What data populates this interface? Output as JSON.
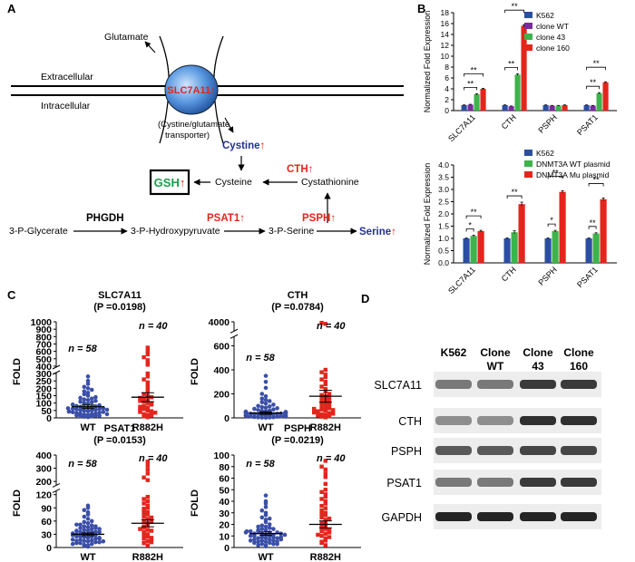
{
  "panel_labels": {
    "a": "A",
    "b": "B",
    "c": "C",
    "d": "D"
  },
  "pathway": {
    "glutamate": "Glutamate",
    "extracellular": "Extracellular",
    "intracellular": "Intracellular",
    "transporter": "SLC7A11",
    "transporter_caption_1": "(Cystine/glutamate",
    "transporter_caption_2": "transporter)",
    "cystine": "Cystine",
    "gsh": "GSH",
    "cth": "CTH",
    "cysteine": "Cysteine",
    "cystathionine": "Cystathionine",
    "phgdh": "PHGDH",
    "glycerate": "3-P-Glycerate",
    "hydroxypyruvate": "3-P-Hydroxypyruvate",
    "psat1": "PSAT1",
    "pserine": "3-P-Serine",
    "psph": "PSPH",
    "serine": "Serine",
    "up_arrow": "↑"
  },
  "western": {
    "lanes": [
      "K562",
      "Clone WT",
      "Clone 43",
      "Clone 160"
    ],
    "lane_lines": [
      [
        "K562"
      ],
      [
        "Clone",
        "WT"
      ],
      [
        "Clone",
        "43"
      ],
      [
        "Clone",
        "160"
      ]
    ],
    "proteins": [
      "SLC7A11",
      "CTH",
      "PSPH",
      "PSAT1",
      "GAPDH"
    ],
    "band_intensity": [
      [
        0.55,
        0.55,
        0.85,
        0.85
      ],
      [
        0.45,
        0.45,
        0.9,
        0.9
      ],
      [
        0.7,
        0.7,
        0.8,
        0.8
      ],
      [
        0.55,
        0.55,
        0.85,
        0.85
      ],
      [
        0.95,
        0.95,
        0.95,
        0.95
      ]
    ]
  },
  "colors": {
    "k562": "#2b4ea2",
    "clone_wt": "#7a2c9e",
    "clone43": "#3cb44b",
    "clone160": "#e3261c",
    "wt_dots": "#3b4fa8",
    "r882h_dots": "#e3261c",
    "red_text": "#e3261c",
    "blue_text": "#23309b",
    "gsh_green": "#14a14a"
  },
  "chart_data": [
    {
      "type": "bar",
      "panel": "B-top",
      "categories": [
        "SLC7A11",
        "CTH",
        "PSPH",
        "PSAT1"
      ],
      "ylabel": "Normalized Fold Expression",
      "ylim": [
        0,
        18
      ],
      "yticks": [
        0,
        2,
        4,
        6,
        8,
        10,
        12,
        14,
        16,
        18
      ],
      "legend": "top-right",
      "series": [
        {
          "name": "K562",
          "values": [
            1.0,
            1.0,
            1.0,
            1.0
          ],
          "err": [
            0.05,
            0.05,
            0.05,
            0.05
          ]
        },
        {
          "name": "clone WT",
          "values": [
            1.1,
            0.8,
            0.9,
            0.9
          ],
          "err": [
            0.06,
            0.05,
            0.05,
            0.05
          ]
        },
        {
          "name": "clone 43",
          "values": [
            3.0,
            6.6,
            0.9,
            3.2
          ],
          "err": [
            0.1,
            0.15,
            0.05,
            0.1
          ]
        },
        {
          "name": "clone 160",
          "values": [
            4.0,
            15.6,
            1.0,
            5.2
          ],
          "err": [
            0.1,
            0.2,
            0.05,
            0.1
          ]
        }
      ],
      "significance": [
        {
          "cat": 0,
          "from": 0,
          "to": 2,
          "label": "**"
        },
        {
          "cat": 0,
          "from": 0,
          "to": 3,
          "label": "**"
        },
        {
          "cat": 1,
          "from": 0,
          "to": 2,
          "label": "**"
        },
        {
          "cat": 1,
          "from": 0,
          "to": 3,
          "label": "**"
        },
        {
          "cat": 3,
          "from": 0,
          "to": 2,
          "label": "**"
        },
        {
          "cat": 3,
          "from": 0,
          "to": 3,
          "label": "**"
        }
      ]
    },
    {
      "type": "bar",
      "panel": "B-bottom",
      "categories": [
        "SLC7A11",
        "CTH",
        "PSPH",
        "PSAT1"
      ],
      "ylabel": "Normalized Fold Expression",
      "ylim": [
        0,
        4
      ],
      "yticks": [
        0,
        0.5,
        1,
        1.5,
        2,
        2.5,
        3,
        3.5,
        4
      ],
      "yticklabels": [
        "0.0",
        "0.5",
        "1.0",
        "1.5",
        "2.0",
        "2.5",
        "3.0",
        "3.5",
        "4.0"
      ],
      "legend": "top-right",
      "series": [
        {
          "name": "K562",
          "values": [
            1.0,
            1.0,
            1.0,
            1.0
          ],
          "err": [
            0.02,
            0.02,
            0.02,
            0.02
          ]
        },
        {
          "name": "DNMT3A WT plasmid",
          "values": [
            1.1,
            1.25,
            1.3,
            1.2
          ],
          "err": [
            0.03,
            0.06,
            0.03,
            0.03
          ]
        },
        {
          "name": "DNMT3A Mu plasmid",
          "values": [
            1.3,
            2.4,
            2.9,
            2.6
          ],
          "err": [
            0.03,
            0.08,
            0.05,
            0.05
          ]
        }
      ],
      "significance": [
        {
          "cat": 0,
          "from": 0,
          "to": 1,
          "label": "*"
        },
        {
          "cat": 0,
          "from": 0,
          "to": 2,
          "label": "**"
        },
        {
          "cat": 1,
          "from": 0,
          "to": 2,
          "label": "**"
        },
        {
          "cat": 2,
          "from": 0,
          "to": 1,
          "label": "*"
        },
        {
          "cat": 2,
          "from": 0,
          "to": 2,
          "label": "**"
        },
        {
          "cat": 3,
          "from": 0,
          "to": 1,
          "label": "**"
        },
        {
          "cat": 3,
          "from": 0,
          "to": 2,
          "label": "**"
        }
      ]
    },
    {
      "type": "scatter",
      "panel": "C-SLC7A11",
      "title": "SLC7A11",
      "subtitle": "(P =0.0198)",
      "ylabel": "FOLD",
      "categories": [
        "WT",
        "R882H"
      ],
      "n_labels": [
        "n = 58",
        "n = 40"
      ],
      "yticks": [
        0,
        50,
        100,
        150,
        200,
        250,
        300,
        400,
        500,
        600,
        700,
        800,
        900,
        1000
      ],
      "break": [
        300,
        400
      ],
      "means": [
        75,
        140
      ],
      "sem": [
        12,
        30
      ],
      "groups": [
        {
          "name": "WT",
          "values": [
            5,
            8,
            10,
            12,
            15,
            18,
            20,
            22,
            25,
            28,
            30,
            32,
            35,
            38,
            40,
            42,
            45,
            48,
            50,
            52,
            55,
            58,
            60,
            62,
            65,
            68,
            70,
            72,
            75,
            78,
            80,
            85,
            90,
            95,
            100,
            105,
            110,
            115,
            120,
            125,
            130,
            135,
            140,
            150,
            160,
            170,
            180,
            190,
            200,
            210,
            230,
            250,
            280,
            15,
            25,
            45,
            55,
            65
          ]
        },
        {
          "name": "R882H",
          "values": [
            5,
            10,
            15,
            20,
            25,
            30,
            40,
            50,
            60,
            70,
            80,
            90,
            100,
            110,
            120,
            130,
            140,
            150,
            160,
            180,
            200,
            220,
            240,
            260,
            280,
            300,
            420,
            450,
            480,
            520,
            560,
            600,
            650,
            35,
            45,
            55,
            75,
            95,
            115,
            135
          ]
        }
      ]
    },
    {
      "type": "scatter",
      "panel": "C-CTH",
      "title": "CTH",
      "subtitle": "(P =0.0784)",
      "ylabel": "FOLD",
      "categories": [
        "WT",
        "R882H"
      ],
      "n_labels": [
        "n = 58",
        "n = 40"
      ],
      "yticks": [
        0,
        200,
        400,
        600,
        4000
      ],
      "break": [
        600,
        3500
      ],
      "means": [
        40,
        180
      ],
      "sem": [
        10,
        50
      ],
      "groups": [
        {
          "name": "WT",
          "values": [
            2,
            3,
            4,
            5,
            6,
            8,
            10,
            12,
            14,
            15,
            16,
            18,
            20,
            22,
            24,
            25,
            26,
            28,
            30,
            32,
            34,
            35,
            36,
            38,
            40,
            42,
            44,
            45,
            46,
            48,
            50,
            52,
            55,
            58,
            60,
            65,
            70,
            75,
            80,
            85,
            90,
            95,
            100,
            110,
            120,
            130,
            140,
            150,
            160,
            180,
            200,
            250,
            300,
            350,
            10,
            20,
            30,
            40
          ]
        },
        {
          "name": "R882H",
          "values": [
            5,
            10,
            15,
            20,
            25,
            30,
            40,
            50,
            60,
            70,
            80,
            90,
            100,
            110,
            120,
            130,
            140,
            150,
            160,
            170,
            180,
            190,
            200,
            220,
            240,
            260,
            280,
            300,
            320,
            340,
            360,
            380,
            400,
            3700,
            3850,
            35,
            45,
            55,
            65,
            75
          ]
        }
      ]
    },
    {
      "type": "scatter",
      "panel": "C-PSAT1",
      "title": "PSAT1",
      "subtitle": "(P =0.0153)",
      "ylabel": "FOLD",
      "categories": [
        "WT",
        "R882H"
      ],
      "n_labels": [
        "n = 58",
        "n = 40"
      ],
      "yticks": [
        0,
        30,
        60,
        90,
        120,
        200,
        300,
        400
      ],
      "break": [
        120,
        200
      ],
      "means": [
        30,
        55
      ],
      "sem": [
        3,
        8
      ],
      "groups": [
        {
          "name": "WT",
          "values": [
            2,
            4,
            5,
            6,
            8,
            10,
            12,
            14,
            15,
            16,
            18,
            20,
            22,
            24,
            25,
            26,
            28,
            30,
            32,
            34,
            35,
            36,
            38,
            40,
            42,
            44,
            45,
            46,
            48,
            50,
            52,
            55,
            58,
            60,
            65,
            70,
            75,
            80,
            85,
            90,
            95,
            10,
            15,
            20,
            25,
            30,
            35,
            12,
            18,
            22,
            28,
            32,
            38,
            42,
            48,
            52,
            8,
            14
          ]
        },
        {
          "name": "R882H",
          "values": [
            5,
            10,
            15,
            20,
            25,
            30,
            35,
            40,
            45,
            50,
            55,
            60,
            65,
            70,
            75,
            80,
            85,
            90,
            95,
            100,
            105,
            110,
            115,
            210,
            230,
            260,
            290,
            320,
            350,
            12,
            18,
            28,
            38,
            48,
            58,
            68,
            78,
            88,
            22,
            42
          ]
        }
      ]
    },
    {
      "type": "scatter",
      "panel": "C-PSPH",
      "title": "PSPH",
      "subtitle": "(P =0.0219)",
      "ylabel": "FOLD",
      "categories": [
        "WT",
        "R882H"
      ],
      "n_labels": [
        "n = 58",
        "n = 40"
      ],
      "yticks": [
        0,
        10,
        20,
        30,
        40,
        50,
        60,
        80,
        100
      ],
      "break": [
        60,
        60
      ],
      "means": [
        12,
        20
      ],
      "sem": [
        1.5,
        3
      ],
      "groups": [
        {
          "name": "WT",
          "values": [
            1,
            2,
            3,
            4,
            5,
            6,
            7,
            8,
            9,
            10,
            11,
            12,
            13,
            14,
            15,
            16,
            17,
            18,
            19,
            20,
            22,
            24,
            26,
            28,
            30,
            32,
            35,
            38,
            40,
            45,
            2,
            3,
            4,
            5,
            6,
            7,
            8,
            9,
            10,
            11,
            12,
            13,
            14,
            15,
            16,
            5,
            8,
            10,
            12,
            14,
            6,
            9,
            11,
            13,
            3,
            7,
            18,
            25
          ]
        },
        {
          "name": "R882H",
          "values": [
            2,
            4,
            6,
            8,
            10,
            12,
            14,
            16,
            18,
            20,
            22,
            24,
            26,
            28,
            30,
            32,
            34,
            36,
            38,
            40,
            42,
            44,
            46,
            48,
            50,
            55,
            62,
            68,
            75,
            80,
            90,
            5,
            9,
            13,
            17,
            21,
            25,
            29,
            15,
            11
          ]
        }
      ]
    }
  ]
}
